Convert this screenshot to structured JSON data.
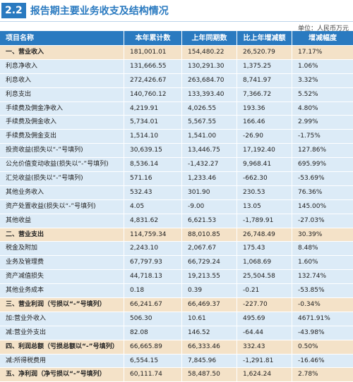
{
  "header": {
    "number": "2.2",
    "title": "报告期主要业务收支及结构情况",
    "unit": "单位：人民币万元"
  },
  "table": {
    "columns": [
      "项目名称",
      "本年累计数",
      "上年同期数",
      "比上年增减额",
      "增减幅度"
    ],
    "rows": [
      {
        "section": true,
        "cells": [
          "一、营业收入",
          "181,001.01",
          "154,480.22",
          "26,520.79",
          "17.17%"
        ]
      },
      {
        "cells": [
          "利息净收入",
          "131,666.55",
          "130,291.30",
          "1,375.25",
          "1.06%"
        ]
      },
      {
        "cells": [
          "利息收入",
          "272,426.67",
          "263,684.70",
          "8,741.97",
          "3.32%"
        ]
      },
      {
        "cells": [
          "利息支出",
          "140,760.12",
          "133,393.40",
          "7,366.72",
          "5.52%"
        ]
      },
      {
        "cells": [
          "手续费及佣金净收入",
          "4,219.91",
          "4,026.55",
          "193.36",
          "4.80%"
        ]
      },
      {
        "cells": [
          "手续费及佣金收入",
          "5,734.01",
          "5,567.55",
          "166.46",
          "2.99%"
        ]
      },
      {
        "cells": [
          "手续费及佣金支出",
          "1,514.10",
          "1,541.00",
          "-26.90",
          "-1.75%"
        ]
      },
      {
        "cells": [
          "投资收益(损失以“-”号填列)",
          "30,639.15",
          "13,446.75",
          "17,192.40",
          "127.86%"
        ]
      },
      {
        "cells": [
          "公允价值变动收益(损失以“-”号填列)",
          "8,536.14",
          "-1,432.27",
          "9,968.41",
          "695.99%"
        ]
      },
      {
        "cells": [
          "汇兑收益(损失以“-”号填列)",
          "571.16",
          "1,233.46",
          "-662.30",
          "-53.69%"
        ]
      },
      {
        "cells": [
          "其他业务收入",
          "532.43",
          "301.90",
          "230.53",
          "76.36%"
        ]
      },
      {
        "cells": [
          "资产处置收益(损失以“-”号填列)",
          "4.05",
          "-9.00",
          "13.05",
          "145.00%"
        ]
      },
      {
        "cells": [
          "其他收益",
          "4,831.62",
          "6,621.53",
          "-1,789.91",
          "-27.03%"
        ]
      },
      {
        "section": true,
        "cells": [
          "二、营业支出",
          "114,759.34",
          "88,010.85",
          "26,748.49",
          "30.39%"
        ]
      },
      {
        "cells": [
          "税金及附加",
          "2,243.10",
          "2,067.67",
          "175.43",
          "8.48%"
        ]
      },
      {
        "cells": [
          "业务及管理费",
          "67,797.93",
          "66,729.24",
          "1,068.69",
          "1.60%"
        ]
      },
      {
        "cells": [
          "资产减值损失",
          "44,718.13",
          "19,213.55",
          "25,504.58",
          "132.74%"
        ]
      },
      {
        "cells": [
          "其他业务成本",
          "0.18",
          "0.39",
          "-0.21",
          "-53.85%"
        ]
      },
      {
        "section": true,
        "cells": [
          "三、营业利润（亏损以“-”号填列）",
          "66,241.67",
          "66,469.37",
          "-227.70",
          "-0.34%"
        ]
      },
      {
        "cells": [
          "加:营业外收入",
          "506.30",
          "10.61",
          "495.69",
          "4671.91%"
        ]
      },
      {
        "cells": [
          "减:营业外支出",
          "82.08",
          "146.52",
          "-64.44",
          "-43.98%"
        ]
      },
      {
        "section": true,
        "cells": [
          "四、利润总额（亏损总额以“-”号填列）",
          "66,665.89",
          "66,333.46",
          "332.43",
          "0.50%"
        ]
      },
      {
        "cells": [
          "减:所得税费用",
          "6,554.15",
          "7,845.96",
          "-1,291.81",
          "-16.46%"
        ]
      },
      {
        "section": true,
        "cells": [
          "五、净利润（净亏损以“-”号填列）",
          "60,111.74",
          "58,487.50",
          "1,624.24",
          "2.78%"
        ]
      }
    ]
  }
}
